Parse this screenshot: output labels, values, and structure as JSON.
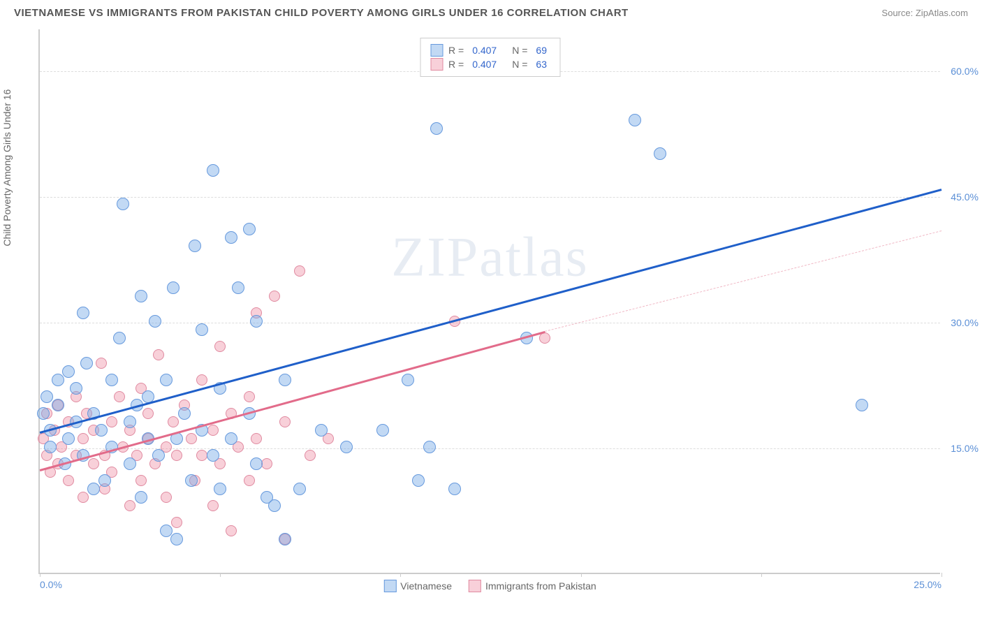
{
  "header": {
    "title": "VIETNAMESE VS IMMIGRANTS FROM PAKISTAN CHILD POVERTY AMONG GIRLS UNDER 16 CORRELATION CHART",
    "source_label": "Source:",
    "source_name": "ZipAtlas.com"
  },
  "axes": {
    "y_label": "Child Poverty Among Girls Under 16",
    "x_min": 0,
    "x_max": 25,
    "y_min": 0,
    "y_max": 65,
    "y_ticks": [
      15,
      30,
      45,
      60
    ],
    "y_tick_labels": [
      "15.0%",
      "30.0%",
      "45.0%",
      "60.0%"
    ],
    "x_ticks": [
      0,
      5,
      10,
      15,
      20,
      25
    ],
    "x_tick_labels_shown": {
      "0": "0.0%",
      "25": "25.0%"
    }
  },
  "series": {
    "vietnamese": {
      "label": "Vietnamese",
      "color_fill": "rgba(120, 170, 230, 0.45)",
      "color_stroke": "#6699dd",
      "trend_color": "#1f5fc9",
      "r_value": "0.407",
      "n_value": "69",
      "marker_radius": 9,
      "trend": {
        "x1": 0,
        "y1": 17,
        "x2": 25,
        "y2": 46
      },
      "points": [
        [
          0.1,
          19
        ],
        [
          0.2,
          21
        ],
        [
          0.3,
          17
        ],
        [
          0.3,
          15
        ],
        [
          0.5,
          23
        ],
        [
          0.5,
          20
        ],
        [
          0.7,
          13
        ],
        [
          0.8,
          24
        ],
        [
          0.8,
          16
        ],
        [
          1.0,
          22
        ],
        [
          1.0,
          18
        ],
        [
          1.2,
          31
        ],
        [
          1.2,
          14
        ],
        [
          1.3,
          25
        ],
        [
          1.5,
          10
        ],
        [
          1.5,
          19
        ],
        [
          1.7,
          17
        ],
        [
          1.8,
          11
        ],
        [
          2.0,
          23
        ],
        [
          2.0,
          15
        ],
        [
          2.2,
          28
        ],
        [
          2.3,
          44
        ],
        [
          2.5,
          18
        ],
        [
          2.5,
          13
        ],
        [
          2.7,
          20
        ],
        [
          2.8,
          33
        ],
        [
          2.8,
          9
        ],
        [
          3.0,
          21
        ],
        [
          3.0,
          16
        ],
        [
          3.2,
          30
        ],
        [
          3.3,
          14
        ],
        [
          3.5,
          23
        ],
        [
          3.5,
          5
        ],
        [
          3.7,
          34
        ],
        [
          3.8,
          16
        ],
        [
          3.8,
          4
        ],
        [
          4.0,
          19
        ],
        [
          4.2,
          11
        ],
        [
          4.3,
          39
        ],
        [
          4.5,
          17
        ],
        [
          4.5,
          29
        ],
        [
          4.8,
          48
        ],
        [
          4.8,
          14
        ],
        [
          5.0,
          22
        ],
        [
          5.0,
          10
        ],
        [
          5.3,
          40
        ],
        [
          5.3,
          16
        ],
        [
          5.5,
          34
        ],
        [
          5.8,
          41
        ],
        [
          5.8,
          19
        ],
        [
          6.0,
          30
        ],
        [
          6.0,
          13
        ],
        [
          6.3,
          9
        ],
        [
          6.5,
          8
        ],
        [
          6.8,
          23
        ],
        [
          6.8,
          4
        ],
        [
          7.2,
          10
        ],
        [
          7.8,
          17
        ],
        [
          8.5,
          15
        ],
        [
          9.5,
          17
        ],
        [
          10.2,
          23
        ],
        [
          10.5,
          11
        ],
        [
          10.8,
          15
        ],
        [
          11.0,
          53
        ],
        [
          11.5,
          10
        ],
        [
          13.5,
          28
        ],
        [
          16.5,
          54
        ],
        [
          17.2,
          50
        ],
        [
          22.8,
          20
        ]
      ]
    },
    "pakistan": {
      "label": "Immigrants from Pakistan",
      "color_fill": "rgba(240, 150, 170, 0.45)",
      "color_stroke": "#e08aa0",
      "trend_color": "#e26b8a",
      "trend_dash_color": "#f0b8c5",
      "r_value": "0.407",
      "n_value": "63",
      "marker_radius": 8,
      "trend_solid": {
        "x1": 0,
        "y1": 12.5,
        "x2": 14,
        "y2": 29
      },
      "trend_dashed": {
        "x1": 14,
        "y1": 29,
        "x2": 25,
        "y2": 41
      },
      "points": [
        [
          0.1,
          16
        ],
        [
          0.2,
          14
        ],
        [
          0.2,
          19
        ],
        [
          0.3,
          12
        ],
        [
          0.4,
          17
        ],
        [
          0.5,
          20
        ],
        [
          0.5,
          13
        ],
        [
          0.6,
          15
        ],
        [
          0.8,
          18
        ],
        [
          0.8,
          11
        ],
        [
          1.0,
          14
        ],
        [
          1.0,
          21
        ],
        [
          1.2,
          16
        ],
        [
          1.2,
          9
        ],
        [
          1.3,
          19
        ],
        [
          1.5,
          13
        ],
        [
          1.5,
          17
        ],
        [
          1.7,
          25
        ],
        [
          1.8,
          14
        ],
        [
          1.8,
          10
        ],
        [
          2.0,
          18
        ],
        [
          2.0,
          12
        ],
        [
          2.2,
          21
        ],
        [
          2.3,
          15
        ],
        [
          2.5,
          8
        ],
        [
          2.5,
          17
        ],
        [
          2.7,
          14
        ],
        [
          2.8,
          22
        ],
        [
          2.8,
          11
        ],
        [
          3.0,
          16
        ],
        [
          3.0,
          19
        ],
        [
          3.2,
          13
        ],
        [
          3.3,
          26
        ],
        [
          3.5,
          15
        ],
        [
          3.5,
          9
        ],
        [
          3.7,
          18
        ],
        [
          3.8,
          14
        ],
        [
          3.8,
          6
        ],
        [
          4.0,
          20
        ],
        [
          4.2,
          16
        ],
        [
          4.3,
          11
        ],
        [
          4.5,
          23
        ],
        [
          4.5,
          14
        ],
        [
          4.8,
          17
        ],
        [
          4.8,
          8
        ],
        [
          5.0,
          27
        ],
        [
          5.0,
          13
        ],
        [
          5.3,
          19
        ],
        [
          5.3,
          5
        ],
        [
          5.5,
          15
        ],
        [
          5.8,
          21
        ],
        [
          5.8,
          11
        ],
        [
          6.0,
          31
        ],
        [
          6.0,
          16
        ],
        [
          6.3,
          13
        ],
        [
          6.5,
          33
        ],
        [
          6.8,
          18
        ],
        [
          6.8,
          4
        ],
        [
          7.2,
          36
        ],
        [
          7.5,
          14
        ],
        [
          8.0,
          16
        ],
        [
          11.5,
          30
        ],
        [
          14.0,
          28
        ]
      ]
    }
  },
  "legend_top": {
    "r_label": "R =",
    "n_label": "N ="
  },
  "watermark": "ZIPatlas",
  "colors": {
    "grid": "#dddddd",
    "axis": "#cccccc",
    "tick_text": "#5b8fd6",
    "title_text": "#555555"
  }
}
